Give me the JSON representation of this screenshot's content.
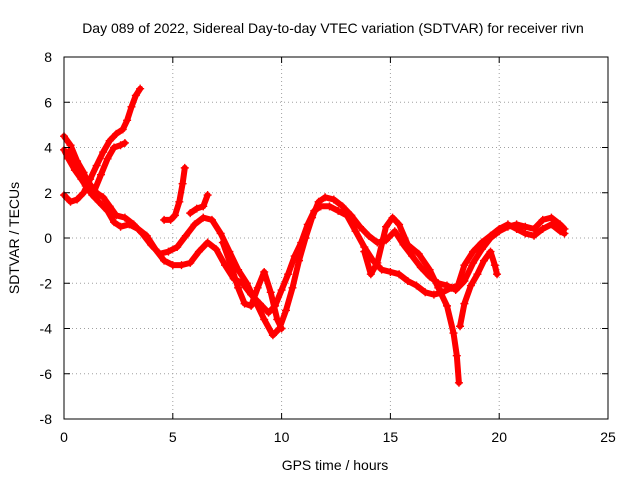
{
  "chart_data": {
    "type": "scatter",
    "title": "Day 089 of 2022, Sidereal Day-to-day VTEC variation (SDTVAR) for receiver rivn",
    "xlabel": "GPS time / hours",
    "ylabel": "SDTVAR / TECUs",
    "xlim": [
      0,
      25
    ],
    "ylim": [
      -8,
      8
    ],
    "x_ticks": [
      0,
      5,
      10,
      15,
      20,
      25
    ],
    "y_ticks": [
      -8,
      -6,
      -4,
      -2,
      0,
      2,
      4,
      6,
      8
    ],
    "x_tick_labels": [
      "0",
      "5",
      "10",
      "15",
      "20",
      "25"
    ],
    "y_tick_labels": [
      "-8",
      "-6",
      "-4",
      "-2",
      "0",
      "2",
      "4",
      "6",
      "8"
    ],
    "grid": true,
    "marker": "+",
    "color": "#ff0000",
    "series": [
      {
        "name": "trace-1",
        "points": [
          [
            0.0,
            3.9
          ],
          [
            0.2,
            3.5
          ],
          [
            0.5,
            3.0
          ],
          [
            0.8,
            2.6
          ],
          [
            1.0,
            2.3
          ],
          [
            1.3,
            1.9
          ],
          [
            1.6,
            1.6
          ],
          [
            2.0,
            1.2
          ],
          [
            2.3,
            0.7
          ],
          [
            2.6,
            0.5
          ],
          [
            3.0,
            0.6
          ],
          [
            3.4,
            0.4
          ],
          [
            3.8,
            0.1
          ],
          [
            4.2,
            -0.5
          ],
          [
            4.6,
            -1.0
          ],
          [
            5.0,
            -1.2
          ],
          [
            5.4,
            -1.2
          ],
          [
            5.8,
            -1.1
          ],
          [
            6.2,
            -0.6
          ],
          [
            6.6,
            -0.2
          ],
          [
            7.0,
            -0.5
          ],
          [
            7.4,
            -1.2
          ],
          [
            7.8,
            -1.8
          ],
          [
            8.2,
            -2.0
          ],
          [
            8.6,
            -2.5
          ],
          [
            9.0,
            -2.9
          ],
          [
            9.4,
            -3.3
          ],
          [
            9.7,
            -3.0
          ],
          [
            10.0,
            -2.3
          ],
          [
            10.3,
            -1.6
          ],
          [
            10.6,
            -0.8
          ],
          [
            10.9,
            -0.2
          ],
          [
            11.2,
            0.6
          ],
          [
            11.5,
            1.2
          ],
          [
            11.8,
            1.4
          ],
          [
            12.2,
            1.4
          ],
          [
            12.6,
            1.2
          ],
          [
            13.0,
            1.0
          ],
          [
            13.4,
            0.3
          ],
          [
            13.8,
            -0.4
          ],
          [
            14.2,
            -1.0
          ],
          [
            14.6,
            -1.4
          ],
          [
            15.0,
            -1.5
          ],
          [
            15.4,
            -1.6
          ],
          [
            15.8,
            -1.9
          ],
          [
            16.2,
            -2.1
          ],
          [
            16.6,
            -2.4
          ],
          [
            17.0,
            -2.5
          ],
          [
            17.4,
            -2.4
          ],
          [
            17.8,
            -2.2
          ],
          [
            18.1,
            -2.1
          ],
          [
            18.4,
            -1.2
          ],
          [
            18.8,
            -0.6
          ],
          [
            19.2,
            -0.2
          ],
          [
            19.6,
            0.1
          ],
          [
            20.0,
            0.4
          ],
          [
            20.4,
            0.6
          ],
          [
            20.8,
            0.4
          ],
          [
            21.2,
            0.2
          ],
          [
            21.6,
            0.1
          ],
          [
            22.0,
            0.4
          ],
          [
            22.4,
            0.6
          ],
          [
            22.8,
            0.3
          ],
          [
            23.0,
            0.2
          ]
        ]
      },
      {
        "name": "trace-2",
        "points": [
          [
            0.0,
            4.5
          ],
          [
            0.3,
            4.1
          ],
          [
            0.6,
            3.4
          ],
          [
            0.9,
            2.9
          ],
          [
            1.2,
            2.2
          ],
          [
            1.5,
            2.0
          ],
          [
            1.8,
            1.8
          ],
          [
            2.1,
            1.4
          ],
          [
            2.4,
            1.0
          ],
          [
            2.8,
            0.9
          ],
          [
            3.2,
            0.6
          ],
          [
            3.6,
            0.2
          ],
          [
            4.0,
            -0.3
          ],
          [
            4.4,
            -0.7
          ],
          [
            4.8,
            -0.6
          ],
          [
            5.2,
            -0.4
          ],
          [
            5.6,
            0.1
          ],
          [
            6.0,
            0.6
          ],
          [
            6.4,
            0.9
          ],
          [
            6.8,
            0.8
          ],
          [
            7.2,
            0.2
          ],
          [
            7.6,
            -0.6
          ],
          [
            8.0,
            -1.4
          ],
          [
            8.4,
            -2.0
          ],
          [
            8.8,
            -2.8
          ],
          [
            9.2,
            -3.6
          ],
          [
            9.6,
            -4.3
          ],
          [
            9.9,
            -4.0
          ],
          [
            10.2,
            -3.2
          ],
          [
            10.5,
            -2.2
          ],
          [
            10.8,
            -1.0
          ],
          [
            11.1,
            0.0
          ],
          [
            11.4,
            0.9
          ],
          [
            11.7,
            1.6
          ],
          [
            12.0,
            1.8
          ],
          [
            12.4,
            1.7
          ],
          [
            12.8,
            1.4
          ],
          [
            13.2,
            1.0
          ],
          [
            13.6,
            0.5
          ],
          [
            14.0,
            0.1
          ],
          [
            14.4,
            -0.2
          ],
          [
            14.8,
            -0.1
          ],
          [
            15.2,
            0.3
          ],
          [
            15.6,
            -0.3
          ],
          [
            16.0,
            -0.8
          ],
          [
            16.4,
            -1.3
          ],
          [
            16.8,
            -1.7
          ],
          [
            17.2,
            -2.0
          ],
          [
            17.6,
            -2.1
          ],
          [
            18.0,
            -2.3
          ],
          [
            18.4,
            -1.9
          ],
          [
            18.8,
            -1.1
          ],
          [
            19.2,
            -0.5
          ],
          [
            19.6,
            0.0
          ],
          [
            20.0,
            0.3
          ],
          [
            20.4,
            0.5
          ],
          [
            20.8,
            0.6
          ],
          [
            21.2,
            0.5
          ],
          [
            21.6,
            0.4
          ],
          [
            22.0,
            0.8
          ],
          [
            22.4,
            0.9
          ],
          [
            22.8,
            0.6
          ],
          [
            23.0,
            0.4
          ]
        ]
      },
      {
        "name": "trace-3",
        "points": [
          [
            0.0,
            1.9
          ],
          [
            0.3,
            1.6
          ],
          [
            0.6,
            1.7
          ],
          [
            0.9,
            2.0
          ],
          [
            1.2,
            2.6
          ],
          [
            1.5,
            3.2
          ],
          [
            1.8,
            3.8
          ],
          [
            2.1,
            4.3
          ],
          [
            2.4,
            4.6
          ],
          [
            2.7,
            4.8
          ],
          [
            2.9,
            5.2
          ],
          [
            3.1,
            5.8
          ],
          [
            3.3,
            6.3
          ],
          [
            3.5,
            6.6
          ]
        ]
      },
      {
        "name": "trace-4",
        "points": [
          [
            0.2,
            3.8
          ],
          [
            0.5,
            3.1
          ],
          [
            0.8,
            2.7
          ],
          [
            1.1,
            2.5
          ],
          [
            1.4,
            2.1
          ],
          [
            1.7,
            2.8
          ],
          [
            2.0,
            3.5
          ],
          [
            2.3,
            4.0
          ],
          [
            2.6,
            4.1
          ],
          [
            2.8,
            4.2
          ]
        ]
      },
      {
        "name": "trace-5",
        "points": [
          [
            4.6,
            0.8
          ],
          [
            4.9,
            0.8
          ],
          [
            5.1,
            1.0
          ],
          [
            5.3,
            1.6
          ],
          [
            5.45,
            2.4
          ],
          [
            5.55,
            3.1
          ]
        ]
      },
      {
        "name": "trace-6",
        "points": [
          [
            5.8,
            1.1
          ],
          [
            6.1,
            1.3
          ],
          [
            6.4,
            1.4
          ],
          [
            6.6,
            1.9
          ]
        ]
      },
      {
        "name": "trace-7",
        "points": [
          [
            7.3,
            -0.2
          ],
          [
            7.7,
            -1.3
          ],
          [
            8.0,
            -2.2
          ],
          [
            8.3,
            -2.9
          ],
          [
            8.6,
            -3.0
          ],
          [
            8.9,
            -2.2
          ],
          [
            9.2,
            -1.5
          ],
          [
            9.5,
            -2.4
          ],
          [
            9.8,
            -3.6
          ],
          [
            10.0,
            -4.0
          ]
        ]
      },
      {
        "name": "trace-8",
        "points": [
          [
            13.8,
            -0.6
          ],
          [
            14.1,
            -1.6
          ],
          [
            14.4,
            -1.1
          ],
          [
            14.8,
            0.5
          ],
          [
            15.1,
            0.9
          ],
          [
            15.4,
            0.6
          ],
          [
            15.8,
            -0.3
          ],
          [
            16.3,
            -0.7
          ],
          [
            16.8,
            -1.4
          ],
          [
            17.2,
            -2.2
          ],
          [
            17.6,
            -3.0
          ],
          [
            17.9,
            -4.2
          ],
          [
            18.05,
            -5.2
          ],
          [
            18.15,
            -6.4
          ]
        ]
      },
      {
        "name": "trace-9",
        "points": [
          [
            18.2,
            -3.9
          ],
          [
            18.4,
            -2.9
          ],
          [
            18.7,
            -2.1
          ],
          [
            19.0,
            -1.6
          ],
          [
            19.3,
            -1.0
          ],
          [
            19.6,
            -0.6
          ],
          [
            19.8,
            -1.2
          ],
          [
            19.9,
            -1.6
          ]
        ]
      }
    ]
  }
}
